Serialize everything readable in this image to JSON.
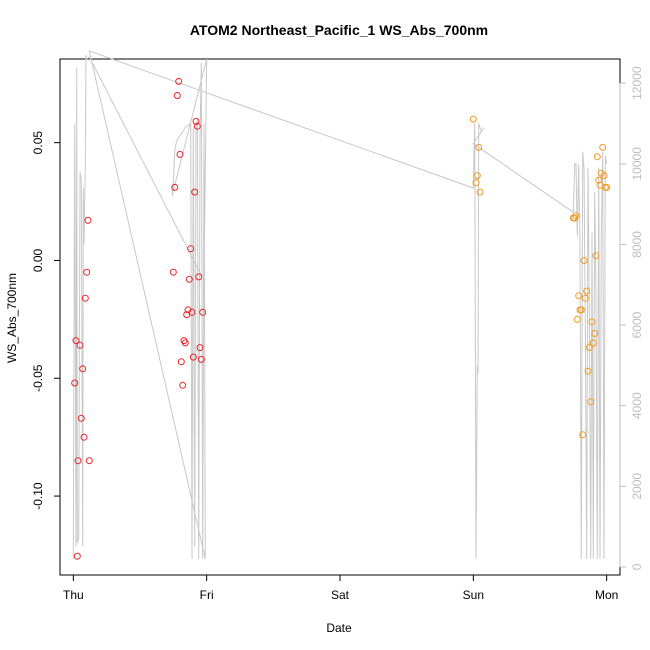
{
  "chart_data": {
    "type": "scatter",
    "title": "ATOM2 Northeast_Pacific_1 WS_Abs_700nm",
    "xlabel": "Date",
    "ylabel": "WS_Abs_700nm",
    "x_ticks": [
      {
        "label": "Thu",
        "day": 0
      },
      {
        "label": "Fri",
        "day": 1
      },
      {
        "label": "Sat",
        "day": 2
      },
      {
        "label": "Sun",
        "day": 3
      },
      {
        "label": "Mon",
        "day": 4
      }
    ],
    "xlim": [
      -0.1,
      4.1
    ],
    "ylim": [
      -0.1335,
      0.0855
    ],
    "y_ticks": [
      -0.1,
      -0.05,
      0.0,
      0.05
    ],
    "y_tick_labels": [
      "-0.10",
      "-0.05",
      "0.00",
      "0.05"
    ],
    "right_axis": {
      "ylim": [
        -200,
        12600
      ],
      "ticks": [
        0,
        2000,
        4000,
        6000,
        8000,
        10000,
        12000
      ],
      "tick_labels": [
        "0",
        "2000",
        "4000",
        "6000",
        "8000",
        "10000",
        "12000"
      ],
      "color": "#bdbdbd"
    },
    "grid": false,
    "colors": {
      "series_red": "#e8262a",
      "series_orange": "#f39a23",
      "altitude_line": "#c8c8c8"
    },
    "series": [
      {
        "color": "#e8262a",
        "x": [
          0.01,
          0.02,
          0.03,
          0.05,
          0.06,
          0.07,
          0.08,
          0.09,
          0.1,
          0.11,
          0.12,
          0.035,
          0.75,
          0.76,
          0.78,
          0.79,
          0.8,
          0.81,
          0.82,
          0.83,
          0.84,
          0.85,
          0.86,
          0.87,
          0.88,
          0.89,
          0.9,
          0.91,
          0.92,
          0.93,
          0.94,
          0.95,
          0.96,
          0.97
        ],
        "y": [
          -0.052,
          -0.034,
          -0.1255,
          -0.036,
          -0.067,
          -0.046,
          -0.075,
          -0.016,
          -0.005,
          0.017,
          -0.085,
          -0.085,
          -0.005,
          0.031,
          0.07,
          0.076,
          0.045,
          -0.043,
          -0.053,
          -0.034,
          -0.035,
          -0.023,
          -0.021,
          -0.008,
          0.005,
          -0.022,
          -0.041,
          0.029,
          0.059,
          0.057,
          -0.007,
          -0.037,
          -0.042,
          -0.022
        ]
      },
      {
        "color": "#f39a23",
        "x": [
          3.0,
          3.02,
          3.03,
          3.04,
          3.05,
          3.75,
          3.76,
          3.77,
          3.78,
          3.79,
          3.8,
          3.81,
          3.82,
          3.83,
          3.84,
          3.85,
          3.86,
          3.87,
          3.88,
          3.89,
          3.9,
          3.91,
          3.92,
          3.93,
          3.94,
          3.95,
          3.96,
          3.97,
          3.98,
          3.99,
          4.0
        ],
        "y": [
          0.06,
          0.033,
          0.036,
          0.048,
          0.029,
          0.018,
          0.018,
          0.019,
          -0.025,
          -0.015,
          -0.021,
          -0.021,
          -0.074,
          0.0,
          -0.016,
          -0.013,
          -0.047,
          -0.037,
          -0.06,
          -0.026,
          -0.035,
          -0.031,
          0.002,
          0.044,
          0.034,
          0.032,
          0.037,
          0.048,
          0.036,
          0.031,
          0.031
        ]
      }
    ],
    "altitude_line": {
      "color": "#c8c8c8",
      "x": [
        0.0,
        0.01,
        0.02,
        0.025,
        0.03,
        0.04,
        0.05,
        0.06,
        0.07,
        0.075,
        0.08,
        0.085,
        0.09,
        0.095,
        0.1,
        0.12,
        0.95,
        0.98,
        1.0,
        0.74,
        0.75,
        0.76,
        0.77,
        0.78,
        0.8,
        0.82,
        0.84,
        0.86,
        0.88,
        0.89,
        0.9,
        0.91,
        0.92,
        0.93,
        0.94,
        0.95,
        0.96,
        0.97,
        0.98,
        0.99,
        0.12,
        3.0,
        3.01,
        3.02,
        3.03,
        3.035,
        3.04,
        3.05,
        3.06,
        3.08,
        3.0,
        3.75,
        3.76,
        3.77,
        3.78,
        3.79,
        3.8,
        3.81,
        3.82,
        3.83,
        3.84,
        3.85,
        3.86,
        3.87,
        3.88,
        3.89,
        3.9,
        3.91,
        3.92,
        3.93,
        3.94,
        3.95,
        3.96,
        3.97,
        3.98,
        3.99,
        4.0
      ],
      "y": [
        200,
        11000,
        500,
        12400,
        600,
        700,
        9800,
        9600,
        500,
        9400,
        8000,
        9100,
        9900,
        12700,
        12600,
        12650,
        7300,
        7200,
        12600,
        9200,
        9500,
        10300,
        10500,
        10600,
        10700,
        10800,
        10900,
        10950,
        11000,
        200,
        10900,
        500,
        10900,
        11100,
        200,
        10600,
        12500,
        200,
        11000,
        200,
        12800,
        9400,
        11000,
        200,
        5000,
        4800,
        11000,
        10900,
        10800,
        10900,
        10500,
        8800,
        10000,
        10000,
        8200,
        10000,
        8000,
        200,
        10300,
        9900,
        6000,
        200,
        9900,
        6500,
        200,
        8300,
        200,
        9300,
        6800,
        200,
        9900,
        200,
        8200,
        10300,
        200,
        10200,
        10000
      ]
    }
  }
}
